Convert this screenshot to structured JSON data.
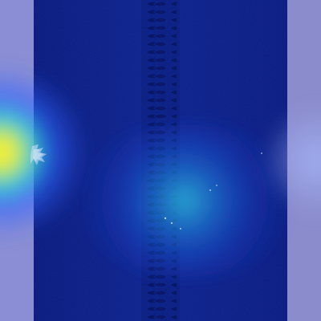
{
  "image": {
    "subject": "zipper-fabric-strip",
    "overlay": "heatmap",
    "colors": {
      "background": "#8a8cd2",
      "fabric": "#0b1f8a",
      "fabric_dark": "#091a77",
      "zipper_teeth": "#0a1865",
      "heat_low": "#2d5cff",
      "heat_mid": "#15d3d8",
      "heat_high": "#fff23a"
    }
  }
}
